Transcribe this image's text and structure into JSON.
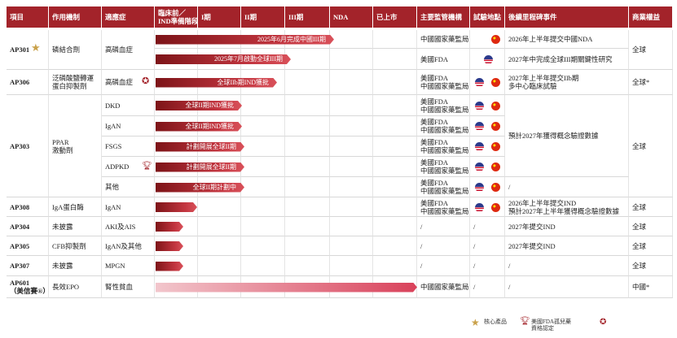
{
  "table": {
    "header": [
      "項目",
      "作用機制",
      "適應症",
      [
        "臨床前／",
        "IND準備階段"
      ],
      "I期",
      "II期",
      "III期",
      "NDA",
      "已上市",
      "主要監管機構",
      "試驗地點",
      "後續里程碑事件",
      "商業權益"
    ],
    "rows": [
      {
        "project": [
          "AP301"
        ],
        "mechanism": [
          "磷結合劑"
        ],
        "indication": "高磷血症",
        "bar": "2025年6月完成中國III期",
        "regulator": [
          "中國國家藥監局"
        ],
        "milestone": [
          "2026年上半年提交中國NDA"
        ],
        "rights": "全球"
      },
      {
        "bar": "2025年7月啟動全球III期",
        "regulator": [
          "美國FDA"
        ],
        "milestone": [
          "2027年中完成全球III期關鍵性研究"
        ]
      },
      {
        "project": [
          "AP306"
        ],
        "mechanism": [
          "泛磷酸鹽轉運",
          "蛋白抑製劑"
        ],
        "indication": "高磷血症",
        "bar": "全球IIb期IND獲批",
        "regulator": [
          "美國FDA",
          "中國國家藥監局"
        ],
        "milestone": [
          "2027年上半年提交IIb期",
          "多中心臨床試驗"
        ],
        "rights": "全球*"
      },
      {
        "project": [
          "AP303"
        ],
        "mechanism": [
          "PPAR",
          "激動劑"
        ],
        "indication": "DKD",
        "bar": "全球II期IND獲批",
        "regulator": [
          "美國FDA",
          "中國國家藥監局"
        ],
        "milestone": [
          "預計2027年獲得概念驗證數據"
        ],
        "rights": "全球"
      },
      {
        "indication": "IgAN",
        "bar": "全球II期IND獲批",
        "regulator": [
          "美國FDA",
          "中國國家藥監局"
        ]
      },
      {
        "indication": "FSGS",
        "bar": "計劃開展全球II期",
        "regulator": [
          "美國FDA",
          "中國國家藥監局"
        ]
      },
      {
        "indication": "ADPKD",
        "bar": "計劃開展全球II期",
        "regulator": [
          "美國FDA",
          "中國國家藥監局"
        ]
      },
      {
        "indication": "其他",
        "bar": "全球II期計劃中",
        "regulator": [
          "美國FDA",
          "中國國家藥監局"
        ],
        "milestone": [
          "/"
        ]
      },
      {
        "project": [
          "AP308"
        ],
        "mechanism": [
          "IgA蛋白酶"
        ],
        "indication": "IgAN",
        "regulator": [
          "美國FDA",
          "中國國家藥監局"
        ],
        "milestone": [
          "2026年上半年提交IND",
          "預計2027年上半年獲得概念驗證數據"
        ],
        "rights": "全球"
      },
      {
        "project": [
          "AP304"
        ],
        "mechanism": [
          "未披露"
        ],
        "indication": "AKI及AIS",
        "regulator": [
          "/"
        ],
        "sites": "/",
        "milestone": [
          "2027年提交IND"
        ],
        "rights": "全球"
      },
      {
        "project": [
          "AP305"
        ],
        "mechanism": [
          "CFB抑製劑"
        ],
        "indication": "IgAN及其他",
        "regulator": [
          "/"
        ],
        "sites": "/",
        "milestone": [
          "2027年提交IND"
        ],
        "rights": "全球"
      },
      {
        "project": [
          "AP307"
        ],
        "mechanism": [
          "未披露"
        ],
        "indication": "MPGN",
        "regulator": [
          "/"
        ],
        "sites": "/",
        "milestone": [
          "/"
        ],
        "rights": "全球"
      },
      {
        "project": [
          "AP601",
          "（美信賽®）"
        ],
        "mechanism": [
          "長效EPO"
        ],
        "indication": "腎性貧血",
        "regulator": [
          "中國國家藥監局"
        ],
        "sites": "/",
        "milestone": [
          "/"
        ],
        "rights": "中國*"
      }
    ]
  },
  "legend": [
    {
      "label": [
        "核心產品"
      ]
    },
    {
      "label": [
        "美國FDA孤兒藥",
        "資格認定"
      ]
    }
  ]
}
